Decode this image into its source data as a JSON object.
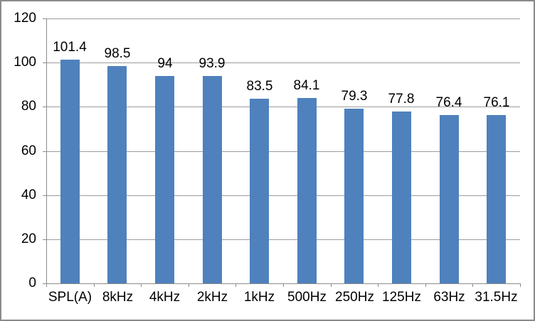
{
  "chart_data": {
    "type": "bar",
    "title": "",
    "xlabel": "",
    "ylabel": "",
    "categories": [
      "SPL(A)",
      "8kHz",
      "4kHz",
      "2kHz",
      "1kHz",
      "500Hz",
      "250Hz",
      "125Hz",
      "63Hz",
      "31.5Hz"
    ],
    "values": [
      101.4,
      98.5,
      94,
      93.9,
      83.5,
      84.1,
      79.3,
      77.8,
      76.4,
      76.1
    ],
    "value_labels": [
      "101.4",
      "98.5",
      "94",
      "93.9",
      "83.5",
      "84.1",
      "79.3",
      "77.8",
      "76.4",
      "76.1"
    ],
    "ylim": [
      0,
      120
    ],
    "yticks": [
      0,
      20,
      40,
      60,
      80,
      100,
      120
    ],
    "grid": true,
    "legend_position": "none",
    "colors": {
      "bar_fill": "#4F81BD",
      "gridline": "#9c9c9c",
      "axis": "#8c8c8c",
      "frame_border": "#8a8a8a",
      "text": "#000000",
      "background": "#ffffff"
    }
  }
}
